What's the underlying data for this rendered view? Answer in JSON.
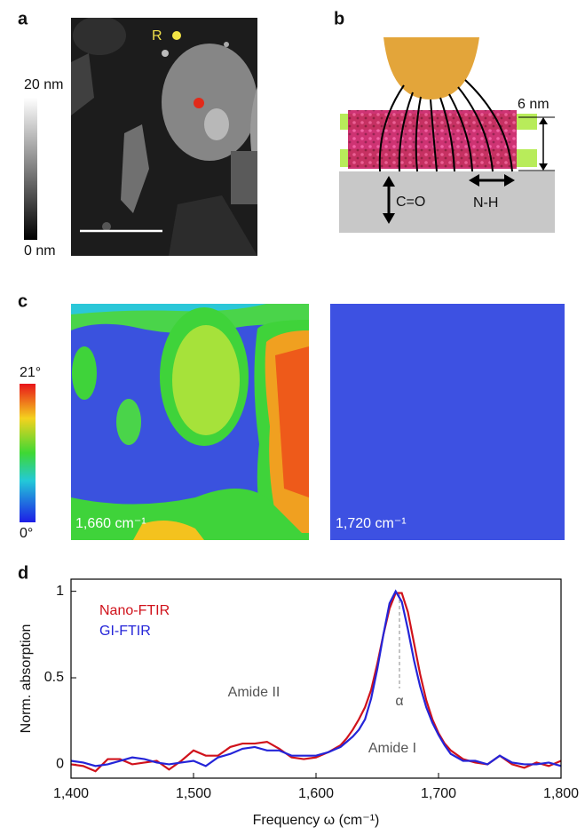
{
  "panel_labels": [
    "a",
    "b",
    "c",
    "d"
  ],
  "panel_a": {
    "colorbar_labels": [
      "20 nm",
      "0 nm"
    ],
    "marker": "R"
  },
  "panel_b": {
    "thickness": "6 nm",
    "vertical_mode": "C=O",
    "horizontal_mode": "N-H"
  },
  "panel_c": {
    "colorbar_labels": [
      "21°",
      "0°"
    ],
    "image_labels": [
      "1,660 cm⁻¹",
      "1,720 cm⁻¹"
    ]
  },
  "chart_data": {
    "type": "line",
    "ylabel": "Norm. absorption",
    "xlabel": "Frequency ω (cm⁻¹)",
    "annotations": [
      "Amide II",
      "Amide I",
      "α"
    ],
    "x": [
      1400,
      1410,
      1420,
      1430,
      1440,
      1450,
      1460,
      1470,
      1480,
      1490,
      1500,
      1510,
      1520,
      1530,
      1540,
      1550,
      1560,
      1570,
      1580,
      1590,
      1600,
      1610,
      1620,
      1625,
      1630,
      1635,
      1640,
      1645,
      1650,
      1655,
      1660,
      1665,
      1670,
      1675,
      1680,
      1685,
      1690,
      1695,
      1700,
      1705,
      1710,
      1720,
      1730,
      1740,
      1750,
      1760,
      1770,
      1780,
      1790,
      1800
    ],
    "series": [
      {
        "name": "Nano-FTIR",
        "color": "#d0121b",
        "values": [
          0.0,
          -0.01,
          -0.04,
          0.03,
          0.03,
          0.0,
          0.01,
          0.02,
          -0.03,
          0.02,
          0.08,
          0.05,
          0.05,
          0.1,
          0.12,
          0.12,
          0.13,
          0.09,
          0.04,
          0.03,
          0.04,
          0.07,
          0.11,
          0.15,
          0.2,
          0.26,
          0.33,
          0.43,
          0.58,
          0.75,
          0.9,
          0.99,
          0.99,
          0.88,
          0.7,
          0.52,
          0.37,
          0.26,
          0.18,
          0.12,
          0.08,
          0.03,
          0.01,
          0.0,
          0.05,
          0.0,
          -0.02,
          0.01,
          -0.01,
          0.02
        ]
      },
      {
        "name": "GI-FTIR",
        "color": "#2424d8",
        "values": [
          0.02,
          0.01,
          -0.01,
          0.0,
          0.02,
          0.04,
          0.03,
          0.01,
          0.0,
          0.01,
          0.02,
          -0.01,
          0.04,
          0.06,
          0.09,
          0.1,
          0.08,
          0.08,
          0.05,
          0.05,
          0.05,
          0.07,
          0.1,
          0.13,
          0.16,
          0.2,
          0.26,
          0.38,
          0.55,
          0.75,
          0.93,
          1.0,
          0.94,
          0.78,
          0.6,
          0.45,
          0.33,
          0.24,
          0.17,
          0.11,
          0.06,
          0.02,
          0.02,
          0.0,
          0.05,
          0.01,
          0.0,
          0.0,
          0.01,
          -0.01
        ]
      }
    ],
    "xlim": [
      1400,
      1800
    ],
    "xticks": [
      {
        "value": 1400,
        "label": "1,400"
      },
      {
        "value": 1500,
        "label": "1,500"
      },
      {
        "value": 1600,
        "label": "1,600"
      },
      {
        "value": 1700,
        "label": "1,700"
      },
      {
        "value": 1800,
        "label": "1,800"
      }
    ],
    "ylim": [
      -0.08,
      1.07
    ],
    "yticks": [
      0,
      0.5,
      1
    ],
    "grid": false,
    "legend": "upper left"
  }
}
